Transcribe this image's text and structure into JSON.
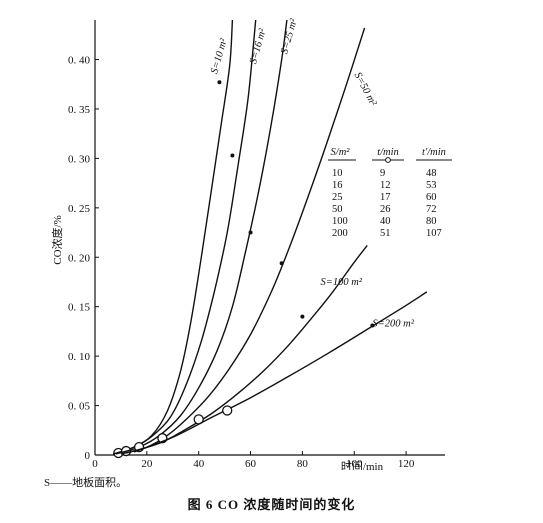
{
  "figure": {
    "footnote": "S——地板面积。",
    "caption": "图 6   CO 浓度随时间的变化"
  },
  "chart_data": {
    "type": "line",
    "title": "",
    "xlabel": "时间/min",
    "ylabel": "CO浓度/%",
    "xlim": [
      0,
      135
    ],
    "ylim": [
      0,
      0.44
    ],
    "xticks": [
      0,
      20,
      40,
      60,
      80,
      100,
      120
    ],
    "yticks": [
      0,
      0.05,
      0.1,
      0.15,
      0.2,
      0.25,
      0.3,
      0.35,
      0.4
    ],
    "ytick_labels": [
      "0",
      "0. 05",
      "0. 10",
      "0. 15",
      "0. 20",
      "0. 25",
      "0. 30",
      "0. 35",
      "0. 40"
    ],
    "grid": false,
    "series": [
      {
        "name": "S=10 m²",
        "label_style": "rotated-top",
        "points": [
          [
            7,
            0.001
          ],
          [
            15,
            0.008
          ],
          [
            22,
            0.02
          ],
          [
            28,
            0.045
          ],
          [
            33,
            0.085
          ],
          [
            37,
            0.135
          ],
          [
            41,
            0.2
          ],
          [
            45,
            0.27
          ],
          [
            49,
            0.34
          ],
          [
            52,
            0.395
          ],
          [
            53,
            0.44
          ]
        ],
        "marks": [
          {
            "x": 9,
            "y": 0.002,
            "symbol": "circle"
          },
          {
            "x": 48,
            "y": 0.377,
            "symbol": "dot"
          }
        ]
      },
      {
        "name": "S=16 m²",
        "label_style": "rotated-top",
        "points": [
          [
            7,
            0.001
          ],
          [
            15,
            0.008
          ],
          [
            22,
            0.019
          ],
          [
            29,
            0.038
          ],
          [
            35,
            0.07
          ],
          [
            41,
            0.115
          ],
          [
            46,
            0.165
          ],
          [
            51,
            0.225
          ],
          [
            55,
            0.29
          ],
          [
            59,
            0.36
          ],
          [
            62,
            0.44
          ]
        ],
        "marks": [
          {
            "x": 12,
            "y": 0.004,
            "symbol": "circle"
          },
          {
            "x": 53,
            "y": 0.303,
            "symbol": "dot"
          }
        ]
      },
      {
        "name": "S=25 m²",
        "label_style": "rotated-top",
        "points": [
          [
            8,
            0.001
          ],
          [
            17,
            0.008
          ],
          [
            25,
            0.02
          ],
          [
            33,
            0.04
          ],
          [
            40,
            0.068
          ],
          [
            47,
            0.105
          ],
          [
            53,
            0.15
          ],
          [
            58,
            0.205
          ],
          [
            63,
            0.265
          ],
          [
            68,
            0.335
          ],
          [
            72,
            0.4
          ],
          [
            74,
            0.44
          ]
        ],
        "marks": [
          {
            "x": 17,
            "y": 0.008,
            "symbol": "circle"
          },
          {
            "x": 60,
            "y": 0.225,
            "symbol": "dot"
          }
        ]
      },
      {
        "name": "S=50 m²",
        "label_style": "rotated-top",
        "points": [
          [
            10,
            0.001
          ],
          [
            20,
            0.008
          ],
          [
            28,
            0.02
          ],
          [
            36,
            0.038
          ],
          [
            44,
            0.06
          ],
          [
            52,
            0.088
          ],
          [
            60,
            0.122
          ],
          [
            68,
            0.165
          ],
          [
            75,
            0.21
          ],
          [
            82,
            0.26
          ],
          [
            90,
            0.32
          ],
          [
            97,
            0.375
          ],
          [
            104,
            0.432
          ]
        ],
        "marks": [
          {
            "x": 26,
            "y": 0.017,
            "symbol": "circle"
          },
          {
            "x": 72,
            "y": 0.194,
            "symbol": "dot"
          }
        ]
      },
      {
        "name": "S=100 m²",
        "label_style": "inline",
        "points": [
          [
            12,
            0.002
          ],
          [
            25,
            0.012
          ],
          [
            35,
            0.026
          ],
          [
            45,
            0.042
          ],
          [
            55,
            0.062
          ],
          [
            65,
            0.085
          ],
          [
            75,
            0.112
          ],
          [
            85,
            0.143
          ],
          [
            92,
            0.166
          ],
          [
            100,
            0.195
          ],
          [
            105,
            0.212
          ]
        ],
        "marks": [
          {
            "x": 40,
            "y": 0.036,
            "symbol": "circle"
          },
          {
            "x": 80,
            "y": 0.14,
            "symbol": "dot"
          }
        ]
      },
      {
        "name": "S=200 m²",
        "label_style": "inline",
        "points": [
          [
            15,
            0.003
          ],
          [
            30,
            0.018
          ],
          [
            45,
            0.038
          ],
          [
            60,
            0.058
          ],
          [
            75,
            0.08
          ],
          [
            90,
            0.103
          ],
          [
            105,
            0.127
          ],
          [
            118,
            0.148
          ],
          [
            128,
            0.165
          ]
        ],
        "marks": [
          {
            "x": 51,
            "y": 0.045,
            "symbol": "circle"
          },
          {
            "x": 107,
            "y": 0.131,
            "symbol": "dot"
          }
        ]
      }
    ],
    "annotations": [
      {
        "text": "S=10 m²",
        "at_x": 47,
        "at_y": 0.385,
        "angle": -74
      },
      {
        "text": "S=16 m²",
        "at_x": 62,
        "at_y": 0.395,
        "angle": -74
      },
      {
        "text": "S=25 m²",
        "at_x": 74,
        "at_y": 0.405,
        "angle": -74
      },
      {
        "text": "S=50 m²",
        "at_x": 100,
        "at_y": 0.385,
        "angle": 62
      },
      {
        "text": "S=100 m²",
        "at_x": 87,
        "at_y": 0.172,
        "angle": 0
      },
      {
        "text": "S=200 m²",
        "at_x": 107,
        "at_y": 0.13,
        "angle": 0
      }
    ],
    "inset_table": {
      "headers": [
        "S/m²",
        "t/min",
        "t′/min"
      ],
      "rows": [
        [
          "10",
          "9",
          "48"
        ],
        [
          "16",
          "12",
          "53"
        ],
        [
          "25",
          "17",
          "60"
        ],
        [
          "50",
          "26",
          "72"
        ],
        [
          "100",
          "40",
          "80"
        ],
        [
          "200",
          "51",
          "107"
        ]
      ]
    }
  }
}
